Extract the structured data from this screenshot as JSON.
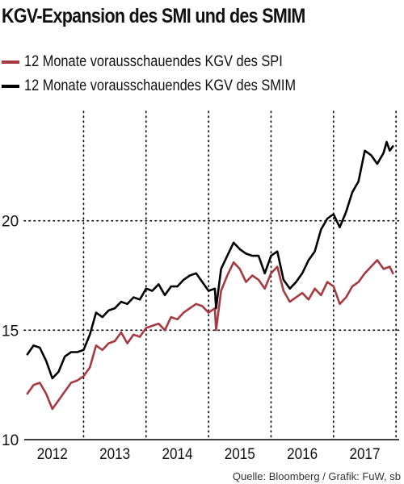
{
  "title": "KGV-Expansion des SMI und des SMIM",
  "source": "Quelle: Bloomberg / Grafik: FuW, sb",
  "colors": {
    "spi": "#a63a40",
    "smim": "#000000"
  },
  "chart_data": {
    "type": "line",
    "title": "KGV-Expansion des SMI und des SMIM",
    "xlabel": "",
    "ylabel": "",
    "xlim": [
      2011.55,
      2017.55
    ],
    "ylim": [
      10,
      25
    ],
    "x_ticks": [
      {
        "label": "2012",
        "value": 2012
      },
      {
        "label": "2013",
        "value": 2013
      },
      {
        "label": "2014",
        "value": 2014
      },
      {
        "label": "2015",
        "value": 2015
      },
      {
        "label": "2016",
        "value": 2016
      },
      {
        "label": "2017",
        "value": 2017
      }
    ],
    "y_ticks": [
      {
        "label": "10",
        "value": 10
      },
      {
        "label": "15",
        "value": 15
      },
      {
        "label": "20",
        "value": 20
      }
    ],
    "grid": "dotted",
    "legend_position": "top-left",
    "series": [
      {
        "name": "12 Monate vorausschauendes KGV des SPI",
        "color": "#a63a40",
        "x": [
          2011.6,
          2011.7,
          2011.8,
          2011.9,
          2012.0,
          2012.1,
          2012.2,
          2012.3,
          2012.4,
          2012.5,
          2012.6,
          2012.7,
          2012.8,
          2012.9,
          2013.0,
          2013.1,
          2013.2,
          2013.3,
          2013.4,
          2013.5,
          2013.6,
          2013.7,
          2013.8,
          2013.9,
          2014.0,
          2014.1,
          2014.2,
          2014.3,
          2014.4,
          2014.5,
          2014.6,
          2014.62,
          2014.7,
          2014.8,
          2014.9,
          2015.0,
          2015.1,
          2015.2,
          2015.3,
          2015.4,
          2015.5,
          2015.6,
          2015.7,
          2015.8,
          2015.9,
          2016.0,
          2016.1,
          2016.2,
          2016.3,
          2016.4,
          2016.5,
          2016.6,
          2016.7,
          2016.8,
          2016.9,
          2017.0,
          2017.1,
          2017.2,
          2017.3,
          2017.4,
          2017.45
        ],
        "y": [
          12.1,
          12.5,
          12.6,
          12.1,
          11.4,
          11.8,
          12.2,
          12.6,
          12.7,
          12.9,
          13.3,
          14.3,
          14.1,
          14.4,
          14.5,
          14.9,
          14.4,
          14.8,
          14.7,
          15.1,
          15.2,
          15.3,
          15.0,
          15.6,
          15.5,
          15.8,
          16.0,
          16.2,
          16.1,
          15.8,
          16.0,
          15.0,
          16.8,
          17.5,
          18.1,
          17.8,
          17.2,
          17.5,
          17.3,
          16.9,
          17.6,
          17.9,
          16.8,
          16.3,
          16.5,
          16.7,
          16.4,
          16.9,
          16.6,
          17.2,
          17.0,
          16.2,
          16.5,
          17.0,
          17.2,
          17.6,
          17.9,
          18.2,
          17.8,
          17.9,
          17.6
        ]
      },
      {
        "name": "12 Monate vorausschauendes KGV des SMIM",
        "color": "#000000",
        "x": [
          2011.6,
          2011.7,
          2011.8,
          2011.9,
          2012.0,
          2012.1,
          2012.2,
          2012.3,
          2012.4,
          2012.5,
          2012.6,
          2012.7,
          2012.8,
          2012.9,
          2013.0,
          2013.1,
          2013.2,
          2013.3,
          2013.4,
          2013.5,
          2013.6,
          2013.7,
          2013.8,
          2013.9,
          2014.0,
          2014.1,
          2014.2,
          2014.3,
          2014.4,
          2014.5,
          2014.6,
          2014.62,
          2014.7,
          2014.8,
          2014.9,
          2015.0,
          2015.1,
          2015.2,
          2015.3,
          2015.4,
          2015.5,
          2015.6,
          2015.7,
          2015.8,
          2015.9,
          2016.0,
          2016.1,
          2016.2,
          2016.3,
          2016.4,
          2016.5,
          2016.6,
          2016.7,
          2016.8,
          2016.9,
          2017.0,
          2017.1,
          2017.2,
          2017.3,
          2017.35,
          2017.4,
          2017.45
        ],
        "y": [
          13.9,
          14.3,
          14.2,
          13.6,
          12.8,
          13.1,
          13.8,
          14.0,
          14.0,
          14.1,
          14.8,
          15.8,
          15.6,
          15.9,
          16.0,
          16.3,
          16.2,
          16.5,
          16.4,
          16.9,
          16.8,
          17.1,
          16.6,
          17.0,
          17.0,
          17.3,
          17.5,
          17.6,
          17.2,
          16.8,
          16.9,
          16.0,
          17.8,
          18.4,
          19.0,
          18.7,
          18.5,
          18.4,
          18.4,
          17.6,
          18.4,
          18.6,
          17.3,
          16.9,
          17.2,
          17.6,
          18.2,
          18.6,
          19.6,
          20.1,
          20.3,
          19.7,
          20.4,
          21.3,
          21.8,
          23.2,
          23.0,
          22.6,
          23.1,
          23.6,
          23.2,
          23.4
        ]
      }
    ]
  }
}
